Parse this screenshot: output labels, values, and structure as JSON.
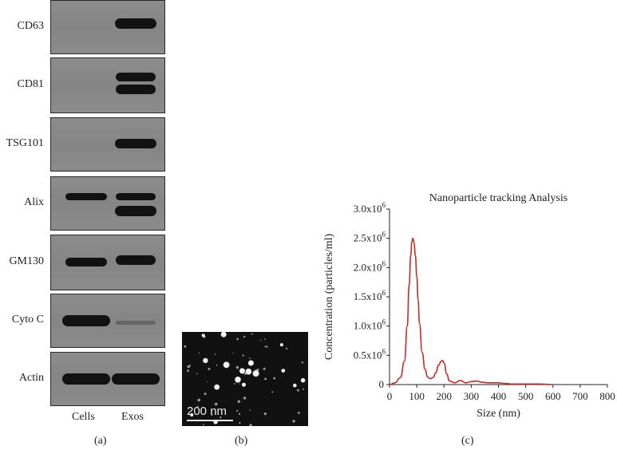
{
  "panel_a": {
    "rows": [
      {
        "label": "CD63"
      },
      {
        "label": "CD81"
      },
      {
        "label": "TSG101"
      },
      {
        "label": "Alix"
      },
      {
        "label": "GM130"
      },
      {
        "label": "Cyto C"
      },
      {
        "label": "Actin"
      }
    ],
    "lanes": [
      "Cells",
      "Exos"
    ],
    "caption": "(a)"
  },
  "panel_b": {
    "scale_text": "200 nm",
    "caption": "(b)"
  },
  "panel_c": {
    "caption": "(c)"
  },
  "chart_data": {
    "type": "line",
    "title": "Nanoparticle tracking Analysis",
    "xlabel": "Size (nm)",
    "ylabel": "Concentration (particles/ml)",
    "xlim": [
      0,
      800
    ],
    "ylim": [
      0,
      3000000
    ],
    "xticks": [
      0,
      100,
      200,
      300,
      400,
      500,
      600,
      700,
      800
    ],
    "yticks": [
      {
        "value": 0,
        "mant": "0",
        "exp": ""
      },
      {
        "value": 500000,
        "mant": "0.5x10",
        "exp": "6"
      },
      {
        "value": 1000000,
        "mant": "1.0x10",
        "exp": "6"
      },
      {
        "value": 1500000,
        "mant": "1.5x10",
        "exp": "6"
      },
      {
        "value": 2000000,
        "mant": "2.0x10",
        "exp": "6"
      },
      {
        "value": 2500000,
        "mant": "2.5x10",
        "exp": "6"
      },
      {
        "value": 3000000,
        "mant": "3.0x10",
        "exp": "6"
      }
    ],
    "line_color": "#c62828",
    "series": [
      {
        "x": [
          0,
          20,
          40,
          55,
          65,
          72,
          78,
          82,
          86,
          90,
          95,
          100,
          105,
          110,
          120,
          130,
          140,
          150,
          160,
          170,
          180,
          190,
          195,
          200,
          210,
          220,
          240,
          260,
          280,
          300,
          320,
          340,
          360,
          380,
          400,
          420,
          450,
          500,
          550,
          600
        ],
        "y": [
          0,
          30000,
          120000,
          400000,
          1000000,
          1700000,
          2200000,
          2450000,
          2500000,
          2420000,
          2200000,
          1850000,
          1450000,
          1050000,
          550000,
          260000,
          130000,
          100000,
          120000,
          200000,
          330000,
          400000,
          410000,
          370000,
          180000,
          60000,
          30000,
          70000,
          30000,
          50000,
          60000,
          40000,
          30000,
          30000,
          30000,
          20000,
          10000,
          10000,
          10000,
          0
        ]
      }
    ]
  }
}
